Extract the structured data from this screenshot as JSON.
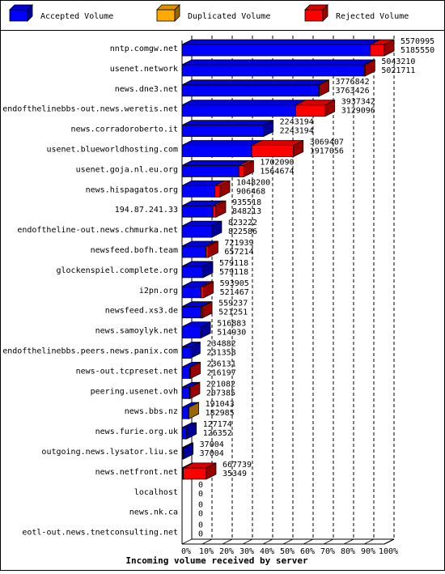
{
  "chart_data": {
    "type": "bar",
    "orientation": "horizontal",
    "stacked": true,
    "three_d": true,
    "xlabel": "Incoming volume received by server",
    "ylabel": "",
    "xlim": [
      0,
      100
    ],
    "x_unit": "%",
    "grid": "vertical dashed",
    "legend_position": "top",
    "x_ticks": [
      "0%",
      "10%",
      "20%",
      "30%",
      "40%",
      "50%",
      "60%",
      "70%",
      "80%",
      "90%",
      "100%"
    ],
    "legend": [
      {
        "label": "Accepted Volume",
        "color": "#0000ff"
      },
      {
        "label": "Duplicated Volume",
        "color": "#ffaa00"
      },
      {
        "label": "Rejected Volume",
        "color": "#ff0000"
      }
    ],
    "max_total": 5570995,
    "servers": [
      {
        "name": "nntp.comgw.net",
        "total": "5570995",
        "accepted": "5185550",
        "acc": 5185550,
        "dup": 0,
        "rej": 385445
      },
      {
        "name": "usenet.network",
        "total": "5043210",
        "accepted": "5021711",
        "acc": 5021711,
        "dup": 0,
        "rej": 21499
      },
      {
        "name": "news.dne3.net",
        "total": "3776842",
        "accepted": "3763426",
        "acc": 3763426,
        "dup": 0,
        "rej": 13416
      },
      {
        "name": "endofthelinebbs-out.news.weretis.net",
        "total": "3937342",
        "accepted": "3129096",
        "acc": 3129096,
        "dup": 0,
        "rej": 808246
      },
      {
        "name": "news.corradoroberto.it",
        "total": "2243194",
        "accepted": "2243194",
        "acc": 2243194,
        "dup": 0,
        "rej": 0
      },
      {
        "name": "usenet.blueworldhosting.com",
        "total": "3069407",
        "accepted": "1917056",
        "acc": 1917056,
        "dup": 0,
        "rej": 1152351
      },
      {
        "name": "usenet.goja.nl.eu.org",
        "total": "1702090",
        "accepted": "1564674",
        "acc": 1564674,
        "dup": 0,
        "rej": 137416
      },
      {
        "name": "news.hispagatos.org",
        "total": "1048200",
        "accepted": "906468",
        "acc": 906468,
        "dup": 0,
        "rej": 141732
      },
      {
        "name": "194.87.241.33",
        "total": "935518",
        "accepted": "848213",
        "acc": 848213,
        "dup": 0,
        "rej": 87305
      },
      {
        "name": "endoftheline-out.news.chmurka.net",
        "total": "823222",
        "accepted": "822586",
        "acc": 822586,
        "dup": 0,
        "rej": 636
      },
      {
        "name": "newsfeed.bofh.team",
        "total": "721939",
        "accepted": "657214",
        "acc": 657214,
        "dup": 0,
        "rej": 64725
      },
      {
        "name": "glockenspiel.complete.org",
        "total": "579118",
        "accepted": "579118",
        "acc": 579118,
        "dup": 0,
        "rej": 0
      },
      {
        "name": "i2pn.org",
        "total": "593905",
        "accepted": "521467",
        "acc": 521467,
        "dup": 0,
        "rej": 72438
      },
      {
        "name": "newsfeed.xs3.de",
        "total": "559237",
        "accepted": "521251",
        "acc": 521251,
        "dup": 0,
        "rej": 37986
      },
      {
        "name": "news.samoylyk.net",
        "total": "516883",
        "accepted": "514930",
        "acc": 514930,
        "dup": 0,
        "rej": 1953
      },
      {
        "name": "endofthelinebbs.peers.news.panix.com",
        "total": "234882",
        "accepted": "231358",
        "acc": 231358,
        "dup": 0,
        "rej": 3524
      },
      {
        "name": "news-out.tcpreset.net",
        "total": "236131",
        "accepted": "216197",
        "acc": 216197,
        "dup": 0,
        "rej": 19934
      },
      {
        "name": "peering.usenet.ovh",
        "total": "221082",
        "accepted": "207385",
        "acc": 207385,
        "dup": 0,
        "rej": 13697
      },
      {
        "name": "news.bbs.nz",
        "total": "191043",
        "accepted": "182985",
        "acc": 182985,
        "dup": 8058,
        "rej": 0
      },
      {
        "name": "news.furie.org.uk",
        "total": "127174",
        "accepted": "126352",
        "acc": 126352,
        "dup": 0,
        "rej": 822
      },
      {
        "name": "outgoing.news.lysator.liu.se",
        "total": "37004",
        "accepted": "37004",
        "acc": 37004,
        "dup": 0,
        "rej": 0
      },
      {
        "name": "news.netfront.net",
        "total": "667739",
        "accepted": "35349",
        "acc": 35349,
        "dup": 0,
        "rej": 632390
      },
      {
        "name": "localhost",
        "total": "0",
        "accepted": "0",
        "acc": 0,
        "dup": 0,
        "rej": 0
      },
      {
        "name": "news.nk.ca",
        "total": "0",
        "accepted": "0",
        "acc": 0,
        "dup": 0,
        "rej": 0
      },
      {
        "name": "eotl-out.news.tnetconsulting.net",
        "total": "0",
        "accepted": "0",
        "acc": 0,
        "dup": 0,
        "rej": 0
      }
    ]
  }
}
